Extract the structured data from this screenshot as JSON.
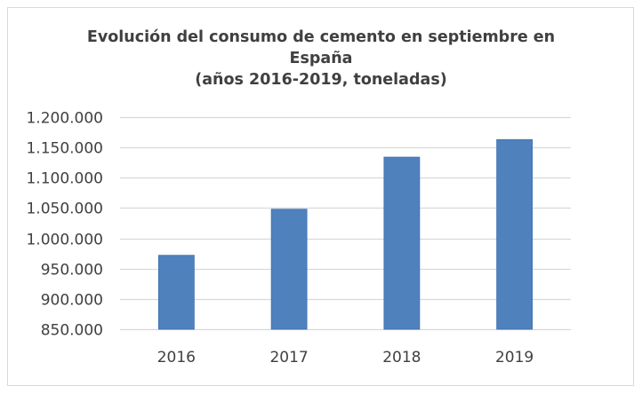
{
  "chart_data": {
    "type": "bar",
    "title_lines": [
      "Evolución del consumo de cemento en septiembre en",
      "España",
      "(años 2016-2019, toneladas)"
    ],
    "categories": [
      "2016",
      "2017",
      "2018",
      "2019"
    ],
    "values": [
      972000,
      1048000,
      1134000,
      1163000
    ],
    "xlabel": "",
    "ylabel": "",
    "ylim": [
      850000,
      1200000
    ],
    "yticks": [
      850000,
      900000,
      950000,
      1000000,
      1050000,
      1100000,
      1150000,
      1200000
    ],
    "ytick_labels": [
      "850.000",
      "900.000",
      "950.000",
      "1.000.000",
      "1.050.000",
      "1.100.000",
      "1.150.000",
      "1.200.000"
    ],
    "grid": true,
    "legend": "none",
    "bar_color": "#4f81bd"
  }
}
